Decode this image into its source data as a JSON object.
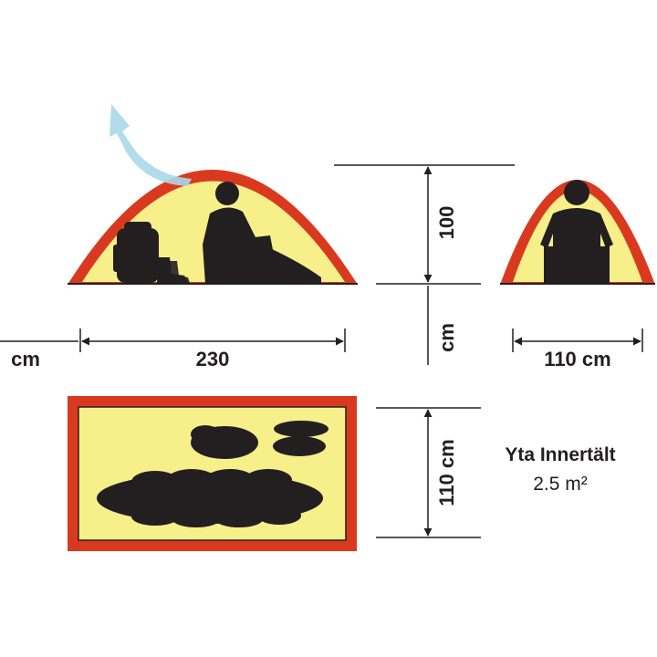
{
  "dimensions": {
    "length_value": "230",
    "length_unit_left": "cm",
    "height_value": "100",
    "height_unit": "cm",
    "end_width": "110 cm",
    "floor_width": "110 cm"
  },
  "area": {
    "title": "Yta Innertält",
    "value": "2.5 m²"
  },
  "colors": {
    "tent_outer": "#d93a1f",
    "tent_inner": "#f7f08a",
    "silhouette": "#231f20",
    "vent_arrow": "#a9d8ea",
    "dimension_line": "#231f20"
  },
  "icons": [
    "vent-arrow-icon",
    "backpack-icon",
    "boots-icon",
    "seated-person-icon",
    "sleeping-bag-icon",
    "gear-icon"
  ]
}
